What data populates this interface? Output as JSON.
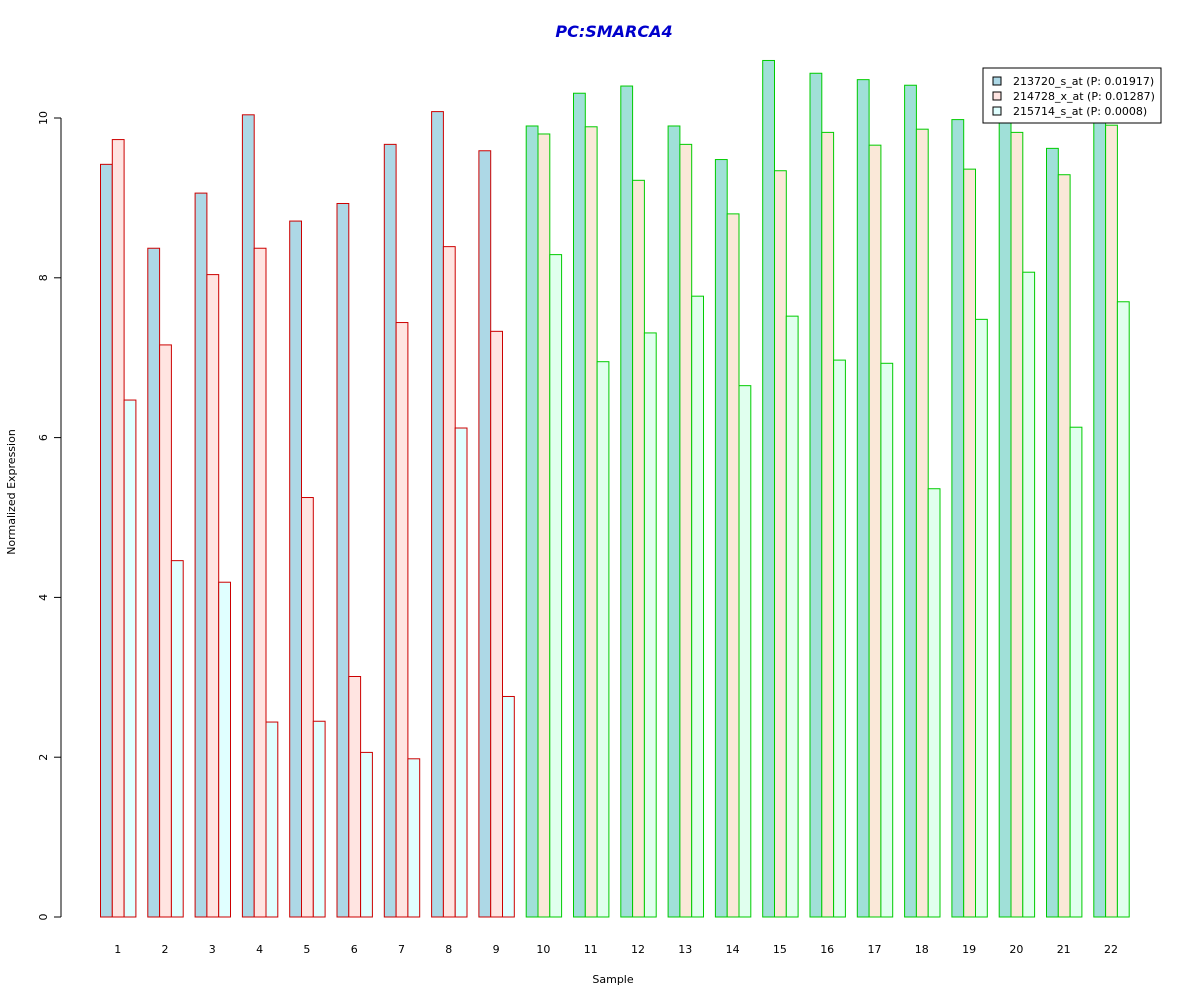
{
  "chart_data": {
    "type": "bar",
    "title": "PC:SMARCA4",
    "title_color": "#0000cc",
    "xlabel": "Sample",
    "ylabel": "Normalized Expression",
    "ylim": [
      0,
      10.75
    ],
    "yticks": [
      0,
      2,
      4,
      6,
      8,
      10
    ],
    "categories": [
      "1",
      "2",
      "3",
      "4",
      "5",
      "6",
      "7",
      "8",
      "9",
      "10",
      "11",
      "12",
      "13",
      "14",
      "15",
      "16",
      "17",
      "18",
      "19",
      "20",
      "21",
      "22"
    ],
    "group_outline_colors": {
      "red": "#cc0000",
      "green": "#00cc00"
    },
    "group_of_category": [
      "red",
      "red",
      "red",
      "red",
      "red",
      "red",
      "red",
      "red",
      "red",
      "green",
      "green",
      "green",
      "green",
      "green",
      "green",
      "green",
      "green",
      "green",
      "green",
      "green",
      "green",
      "green"
    ],
    "legend_position": "top-right",
    "series": [
      {
        "name": "213720_s_at (P: 0.01917)",
        "fill_red_group": "#add8e6",
        "fill_green_group": "#a0e0d8",
        "values": [
          9.42,
          8.37,
          9.06,
          10.04,
          8.71,
          8.93,
          9.67,
          10.08,
          9.59,
          9.9,
          10.31,
          10.4,
          9.9,
          9.48,
          10.72,
          10.56,
          10.48,
          10.41,
          9.98,
          10.0,
          9.62,
          10.0
        ]
      },
      {
        "name": "214728_x_at (P: 0.01287)",
        "fill_red_group": "#ffe4e1",
        "fill_green_group": "#fae8d8",
        "values": [
          9.73,
          7.16,
          8.04,
          8.37,
          5.25,
          3.01,
          7.44,
          8.39,
          7.33,
          9.8,
          9.89,
          9.22,
          9.67,
          8.8,
          9.34,
          9.82,
          9.66,
          9.86,
          9.36,
          9.82,
          9.29,
          9.91
        ]
      },
      {
        "name": "215714_s_at (P: 0.0008)",
        "fill_red_group": "#e0ffff",
        "fill_green_group": "#e0ffee",
        "values": [
          6.47,
          4.46,
          4.19,
          2.44,
          2.45,
          2.06,
          1.98,
          6.12,
          2.76,
          8.29,
          6.95,
          7.31,
          7.77,
          6.65,
          7.52,
          6.97,
          6.93,
          5.36,
          7.48,
          8.07,
          6.13,
          7.7
        ]
      }
    ]
  }
}
